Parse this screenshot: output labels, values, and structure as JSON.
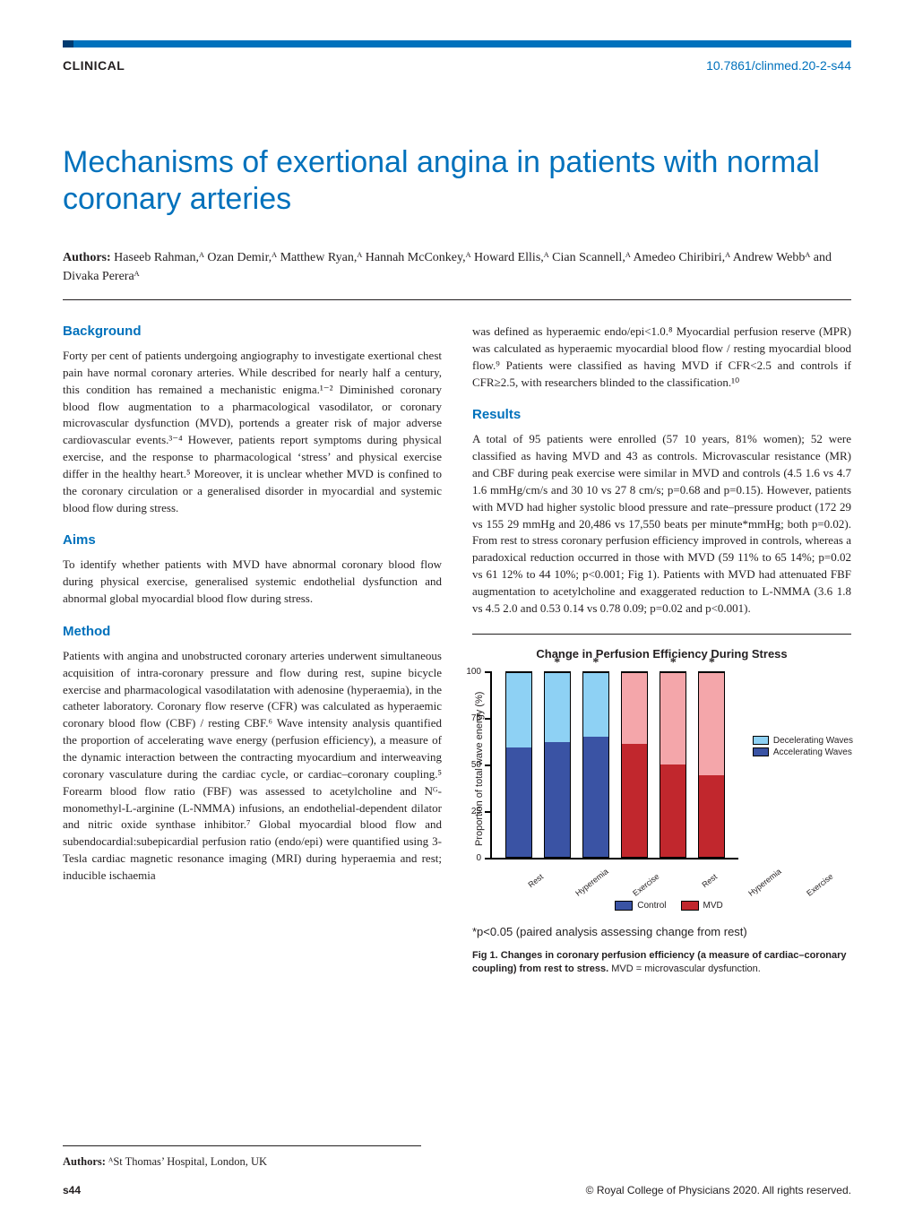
{
  "header": {
    "section": "CLINICAL",
    "doi": "10.7861/clinmed.20-2-s44"
  },
  "title": "Mechanisms of exertional angina in patients with normal coronary arteries",
  "authors": {
    "label": "Authors:",
    "list_html": "Haseeb Rahman,ᴬ Ozan Demir,ᴬ Matthew Ryan,ᴬ Hannah McConkey,ᴬ Howard Ellis,ᴬ Cian Scannell,ᴬ Amedeo Chiribiri,ᴬ Andrew Webbᴬ and Divaka Pereraᴬ"
  },
  "sections": {
    "background": {
      "h": "Background",
      "p": "Forty per cent of patients undergoing angiography to investigate exertional chest pain have normal coronary arteries. While described for nearly half a century, this condition has remained a mechanistic enigma.¹⁻² Diminished coronary blood flow augmentation to a pharmacological vasodilator, or coronary microvascular dysfunction (MVD), portends a greater risk of major adverse cardiovascular events.³⁻⁴ However, patients report symptoms during physical exercise, and the response to pharmacological ‘stress’ and physical exercise differ in the healthy heart.⁵ Moreover, it is unclear whether MVD is confined to the coronary circulation or a generalised disorder in myocardial and systemic blood flow during stress."
    },
    "aims": {
      "h": "Aims",
      "p": "To identify whether patients with MVD have abnormal coronary blood flow during physical exercise, generalised systemic endothelial dysfunction and abnormal global myocardial blood flow during stress."
    },
    "method": {
      "h": "Method",
      "p": "Patients with angina and unobstructed coronary arteries underwent simultaneous acquisition of intra-coronary pressure and flow during rest, supine bicycle exercise and pharmacological vasodilatation with adenosine (hyperaemia), in the catheter laboratory. Coronary flow reserve (CFR) was calculated as hyperaemic coronary blood flow (CBF) / resting CBF.⁶ Wave intensity analysis quantified the proportion of accelerating wave energy (perfusion efficiency), a measure of the dynamic interaction between the contracting myocardium and interweaving coronary vasculature during the cardiac cycle, or cardiac–coronary coupling.⁵ Forearm blood flow ratio (FBF) was assessed to acetylcholine and Nᴳ-monomethyl-L-arginine (L-NMMA) infusions, an endothelial-dependent dilator and nitric oxide synthase inhibitor.⁷ Global myocardial blood flow and subendocardial:subepicardial perfusion ratio (endo/epi) were quantified using 3-Tesla cardiac magnetic resonance imaging (MRI) during hyperaemia and rest; inducible ischaemia"
    },
    "rcol_lead": "was defined as hyperaemic endo/epi<1.0.⁸ Myocardial perfusion reserve (MPR) was calculated as hyperaemic myocardial blood flow / resting myocardial blood flow.⁹ Patients were classified as having MVD if CFR<2.5 and controls if CFR≥2.5, with researchers blinded to the classification.¹⁰",
    "results": {
      "h": "Results",
      "p": "A total of 95 patients were enrolled (57 10 years, 81% women); 52 were classified as having MVD and 43 as controls. Microvascular resistance (MR) and CBF during peak exercise were similar in MVD and controls (4.5 1.6 vs 4.7 1.6 mmHg/cm/s and 30 10 vs 27 8 cm/s; p=0.68 and p=0.15). However, patients with MVD had higher systolic blood pressure and rate–pressure product (172 29 vs 155 29 mmHg and 20,486 vs 17,550 beats per minute*mmHg; both p=0.02). From rest to stress coronary perfusion efficiency improved in controls, whereas a paradoxical reduction occurred in those with MVD (59 11% to 65 14%; p=0.02 vs 61 12% to 44 10%; p<0.001; Fig 1). Patients with MVD had attenuated FBF augmentation to acetylcholine and exaggerated reduction to L-NMMA (3.6 1.8 vs 4.5 2.0 and 0.53 0.14 vs 0.78 0.09; p=0.02 and p<0.001)."
    }
  },
  "chart": {
    "title": "Change in Perfusion Efficiency During Stress",
    "ylabel": "Proportion of total wave energy (%)",
    "ylim": [
      0,
      100
    ],
    "ytick_step": 25,
    "yticks": [
      "0",
      "25",
      "50",
      "75",
      "100"
    ],
    "categories": [
      "Rest",
      "Hyperemia",
      "Exercise",
      "Rest",
      "Hyperemia",
      "Exercise"
    ],
    "accel_vals": [
      59,
      62,
      65,
      61,
      50,
      44
    ],
    "decel_vals": [
      41,
      38,
      35,
      39,
      50,
      56
    ],
    "stars": [
      false,
      true,
      true,
      false,
      true,
      true
    ],
    "group_markers": [
      "Control",
      "MVD"
    ],
    "colors": {
      "control_accel": "#3a53a4",
      "control_decel": "#8ed1f4",
      "mvd_accel": "#c1272d",
      "mvd_decel": "#f4a6aa",
      "border": "#000000",
      "bg": "#ffffff"
    },
    "legend_series": [
      {
        "label": "Decelerating Waves",
        "key": "decel"
      },
      {
        "label": "Accelerating Waves",
        "key": "accel"
      }
    ],
    "group_legend_colors": {
      "control": "#3a53a4",
      "mvd": "#c1272d"
    },
    "pnote": "*p<0.05 (paired analysis assessing change from rest)",
    "caption_bold": "Fig 1. Changes in coronary perfusion efficiency (a measure of cardiac–coronary coupling) from rest to stress.",
    "caption_rest": " MVD = microvascular dysfunction."
  },
  "affiliation": {
    "label": "Authors:",
    "text": "ᴬSt Thomas’ Hospital, London, UK"
  },
  "footer": {
    "page": "s44",
    "copy": "© Royal College of Physicians 2020. All rights reserved."
  }
}
